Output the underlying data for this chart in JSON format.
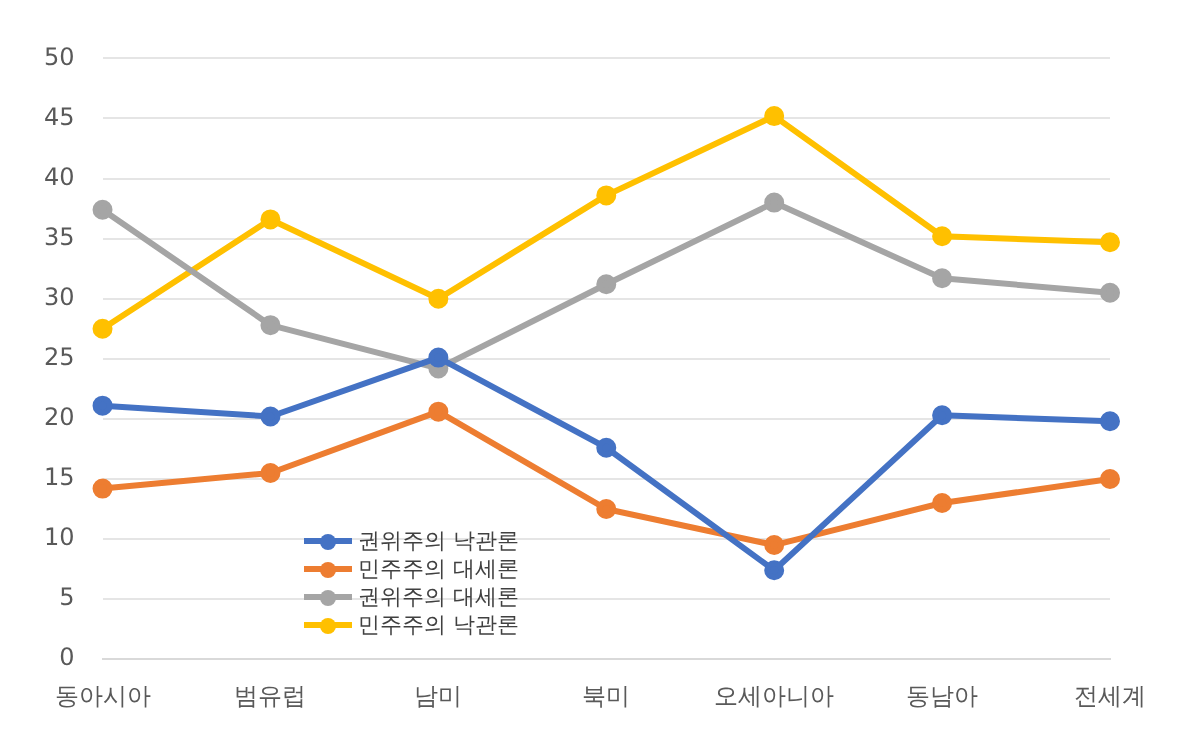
{
  "chart_data": {
    "type": "line",
    "categories": [
      "동아시아",
      "범유럽",
      "남미",
      "북미",
      "오세아니아",
      "동남아",
      "전세계"
    ],
    "series": [
      {
        "name": "권위주의 낙관론",
        "color": "#4472c4",
        "values": [
          21.1,
          20.2,
          25.1,
          17.6,
          7.4,
          20.3,
          19.8
        ]
      },
      {
        "name": "민주주의 대세론",
        "color": "#ed7d31",
        "values": [
          14.2,
          15.5,
          20.6,
          12.5,
          9.5,
          13.0,
          15.0
        ]
      },
      {
        "name": "권위주의 대세론",
        "color": "#a5a5a5",
        "values": [
          37.4,
          27.8,
          24.2,
          31.2,
          38.0,
          31.7,
          30.5
        ]
      },
      {
        "name": "민주주의 낙관론",
        "color": "#ffc000",
        "values": [
          27.5,
          36.6,
          30.0,
          38.6,
          45.2,
          35.2,
          34.7
        ]
      }
    ],
    "ylim": [
      0,
      50
    ],
    "yticks": [
      0,
      5,
      10,
      15,
      20,
      25,
      30,
      35,
      40,
      45,
      50
    ],
    "grid": "y",
    "legend": "bottom left",
    "marker": "circle",
    "line_style": "solid"
  }
}
